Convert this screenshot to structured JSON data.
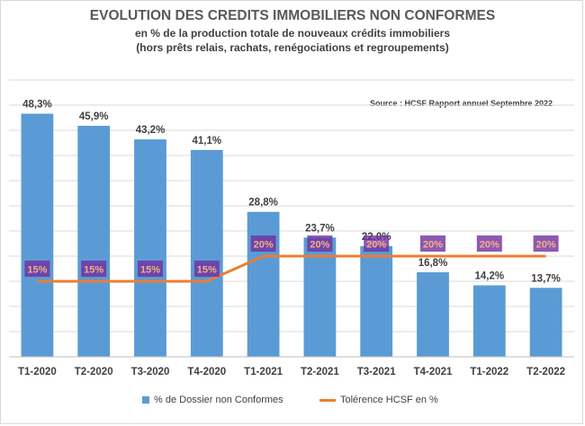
{
  "title": "EVOLUTION DES CREDITS IMMOBILIERS NON CONFORMES",
  "subtitle_1": "en % de la production totale de nouveaux crédits immobiliers",
  "subtitle_2": "(hors prêts relais, rachats, renégociations et regroupements)",
  "source": "Source : HCSF Rapport annuel Septembre 2022",
  "colors": {
    "bar": "#5b9bd5",
    "line": "#ed7d31",
    "tolerance_label_bg": "#7030a0",
    "tolerance_label_text": "#f4b183"
  },
  "chart_data": {
    "type": "bar",
    "categories": [
      "T1-2020",
      "T2-2020",
      "T3-2020",
      "T4-2020",
      "T1-2021",
      "T2-2021",
      "T3-2021",
      "T4-2021",
      "T1-2022",
      "T2-2022"
    ],
    "ylim": [
      0,
      55
    ],
    "grid": true,
    "legend_position": "bottom",
    "series": [
      {
        "name": "% de Dossier non Conformes",
        "type": "bar",
        "values": [
          48.3,
          45.9,
          43.2,
          41.1,
          28.8,
          23.7,
          22.0,
          16.8,
          14.2,
          13.7
        ],
        "labels": [
          "48,3%",
          "45,9%",
          "43,2%",
          "41,1%",
          "28,8%",
          "23,7%",
          "22,0%",
          "16,8%",
          "14,2%",
          "13,7%"
        ]
      },
      {
        "name": "Tolérence HCSF en %",
        "type": "line",
        "values": [
          15,
          15,
          15,
          15,
          20,
          20,
          20,
          20,
          20,
          20
        ],
        "labels": [
          "15%",
          "15%",
          "15%",
          "15%",
          "20%",
          "20%",
          "20%",
          "20%",
          "20%",
          "20%"
        ]
      }
    ]
  }
}
